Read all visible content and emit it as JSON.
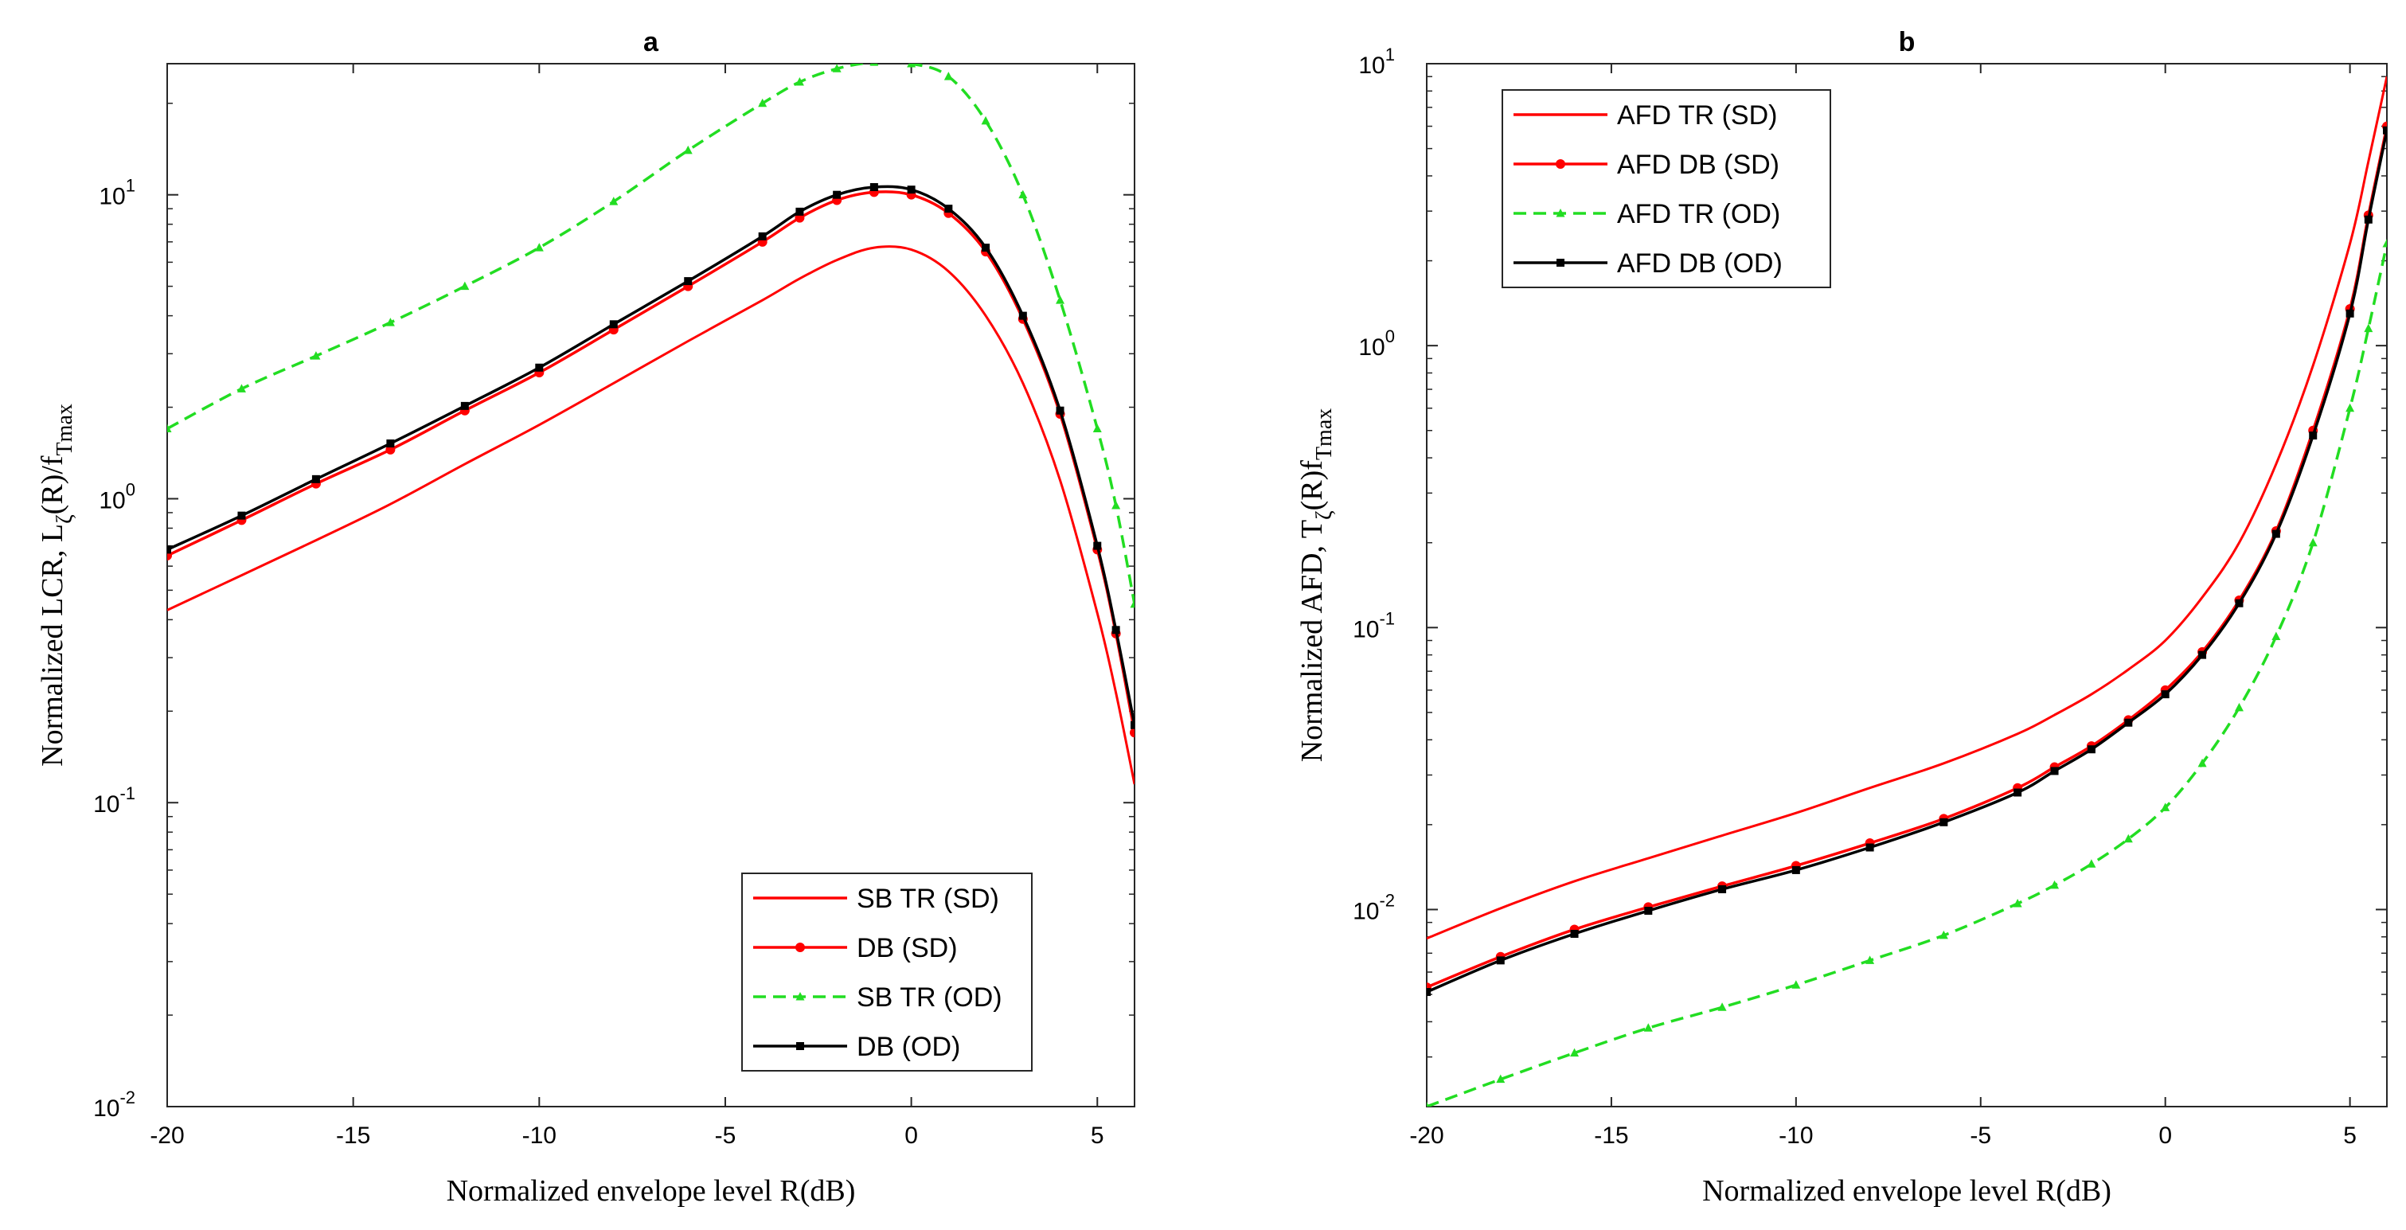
{
  "chart_data": [
    {
      "type": "line",
      "title": "a",
      "xlabel": "Normalized envelope level R(dB)",
      "ylabel": "Normalized LCR, L_ζ(R)/f_Tmax",
      "ylabel_main": "Normalized LCR, L",
      "ylabel_sub1": "ζ",
      "ylabel_mid": "(R)/f",
      "ylabel_sub2": "Tmax",
      "yscale": "log",
      "xlim": [
        -20,
        6
      ],
      "ylim": [
        0.01,
        27
      ],
      "xticks": [
        -20,
        -15,
        -10,
        -5,
        0,
        5
      ],
      "xtick_labels": [
        "-20",
        "-15",
        "-10",
        "-5",
        "0",
        "5"
      ],
      "yticks": [
        0.01,
        0.1,
        1,
        10
      ],
      "ytick_base": [
        "10",
        "10",
        "10",
        "10"
      ],
      "ytick_exp": [
        "-2",
        "-1",
        "0",
        "1"
      ],
      "legend_position": "bottom-right",
      "x": [
        -20,
        -18,
        -16,
        -14,
        -12,
        -10,
        -8,
        -6,
        -4,
        -3,
        -2,
        -1,
        0,
        1,
        2,
        3,
        4,
        5,
        5.5,
        6
      ],
      "series": [
        {
          "name": "SB TR (SD)",
          "color": "#ff0000",
          "style": "solid",
          "marker": "none",
          "values": [
            0.43,
            0.56,
            0.73,
            0.96,
            1.3,
            1.75,
            2.4,
            3.3,
            4.5,
            5.3,
            6.1,
            6.7,
            6.6,
            5.6,
            4.0,
            2.4,
            1.15,
            0.42,
            0.23,
            0.115
          ]
        },
        {
          "name": "DB (SD)",
          "color": "#ff0000",
          "style": "solid",
          "marker": "circle",
          "values": [
            0.65,
            0.85,
            1.12,
            1.45,
            1.95,
            2.6,
            3.6,
            5.0,
            7.0,
            8.4,
            9.6,
            10.2,
            10.0,
            8.7,
            6.5,
            3.9,
            1.9,
            0.68,
            0.36,
            0.17
          ]
        },
        {
          "name": "SB TR (OD)",
          "color": "#22dd22",
          "style": "dashed",
          "marker": "triangle",
          "values": [
            1.7,
            2.3,
            2.95,
            3.8,
            5.0,
            6.7,
            9.5,
            14.0,
            20.0,
            23.5,
            26.0,
            27.3,
            27.0,
            24.5,
            17.5,
            10.0,
            4.5,
            1.7,
            0.95,
            0.45
          ]
        },
        {
          "name": "DB (OD)",
          "color": "#000000",
          "style": "solid",
          "marker": "square",
          "values": [
            0.68,
            0.88,
            1.16,
            1.52,
            2.02,
            2.7,
            3.75,
            5.2,
            7.3,
            8.8,
            10.0,
            10.6,
            10.4,
            9.0,
            6.7,
            4.0,
            1.95,
            0.7,
            0.37,
            0.18
          ]
        }
      ]
    },
    {
      "type": "line",
      "title": "b",
      "xlabel": "Normalized envelope level R(dB)",
      "ylabel": "Normalized AFD, T_ζ(R)f_Tmax",
      "ylabel_main": "Normalized AFD, T",
      "ylabel_sub1": "ζ",
      "ylabel_mid": "(R)f",
      "ylabel_sub2": "Tmax",
      "yscale": "log",
      "xlim": [
        -20,
        6
      ],
      "ylim": [
        0.002,
        10
      ],
      "xticks": [
        -20,
        -15,
        -10,
        -5,
        0,
        5
      ],
      "xtick_labels": [
        "-20",
        "-15",
        "-10",
        "-5",
        "0",
        "5"
      ],
      "yticks": [
        0.01,
        0.1,
        1,
        10
      ],
      "ytick_base": [
        "10",
        "10",
        "10",
        "10"
      ],
      "ytick_exp": [
        "-2",
        "-1",
        "0",
        "1"
      ],
      "legend_position": "top-left",
      "x": [
        -20,
        -18,
        -16,
        -14,
        -12,
        -10,
        -8,
        -6,
        -4,
        -3,
        -2,
        -1,
        0,
        1,
        2,
        3,
        4,
        5,
        5.5,
        6
      ],
      "series": [
        {
          "name": "AFD TR (SD)",
          "color": "#ff0000",
          "style": "solid",
          "marker": "none",
          "values": [
            0.0079,
            0.0101,
            0.0126,
            0.0152,
            0.0183,
            0.022,
            0.027,
            0.033,
            0.042,
            0.049,
            0.058,
            0.071,
            0.09,
            0.128,
            0.2,
            0.38,
            0.85,
            2.3,
            4.5,
            9.0
          ]
        },
        {
          "name": "AFD DB (SD)",
          "color": "#ff0000",
          "style": "solid",
          "marker": "circle",
          "values": [
            0.0053,
            0.0068,
            0.0085,
            0.0102,
            0.0121,
            0.0143,
            0.0172,
            0.021,
            0.027,
            0.032,
            0.038,
            0.047,
            0.06,
            0.082,
            0.125,
            0.22,
            0.5,
            1.35,
            2.9,
            6.0
          ]
        },
        {
          "name": "AFD TR (OD)",
          "color": "#22dd22",
          "style": "dashed",
          "marker": "triangle",
          "values": [
            0.002,
            0.0025,
            0.0031,
            0.0038,
            0.0045,
            0.0054,
            0.0066,
            0.0081,
            0.0105,
            0.0122,
            0.0145,
            0.0178,
            0.023,
            0.033,
            0.052,
            0.093,
            0.2,
            0.6,
            1.15,
            2.3
          ]
        },
        {
          "name": "AFD DB (OD)",
          "color": "#000000",
          "style": "solid",
          "marker": "square",
          "values": [
            0.0051,
            0.0066,
            0.0082,
            0.0099,
            0.0118,
            0.0138,
            0.0166,
            0.0204,
            0.026,
            0.031,
            0.037,
            0.046,
            0.058,
            0.08,
            0.122,
            0.215,
            0.48,
            1.3,
            2.8,
            5.8
          ]
        }
      ]
    }
  ]
}
